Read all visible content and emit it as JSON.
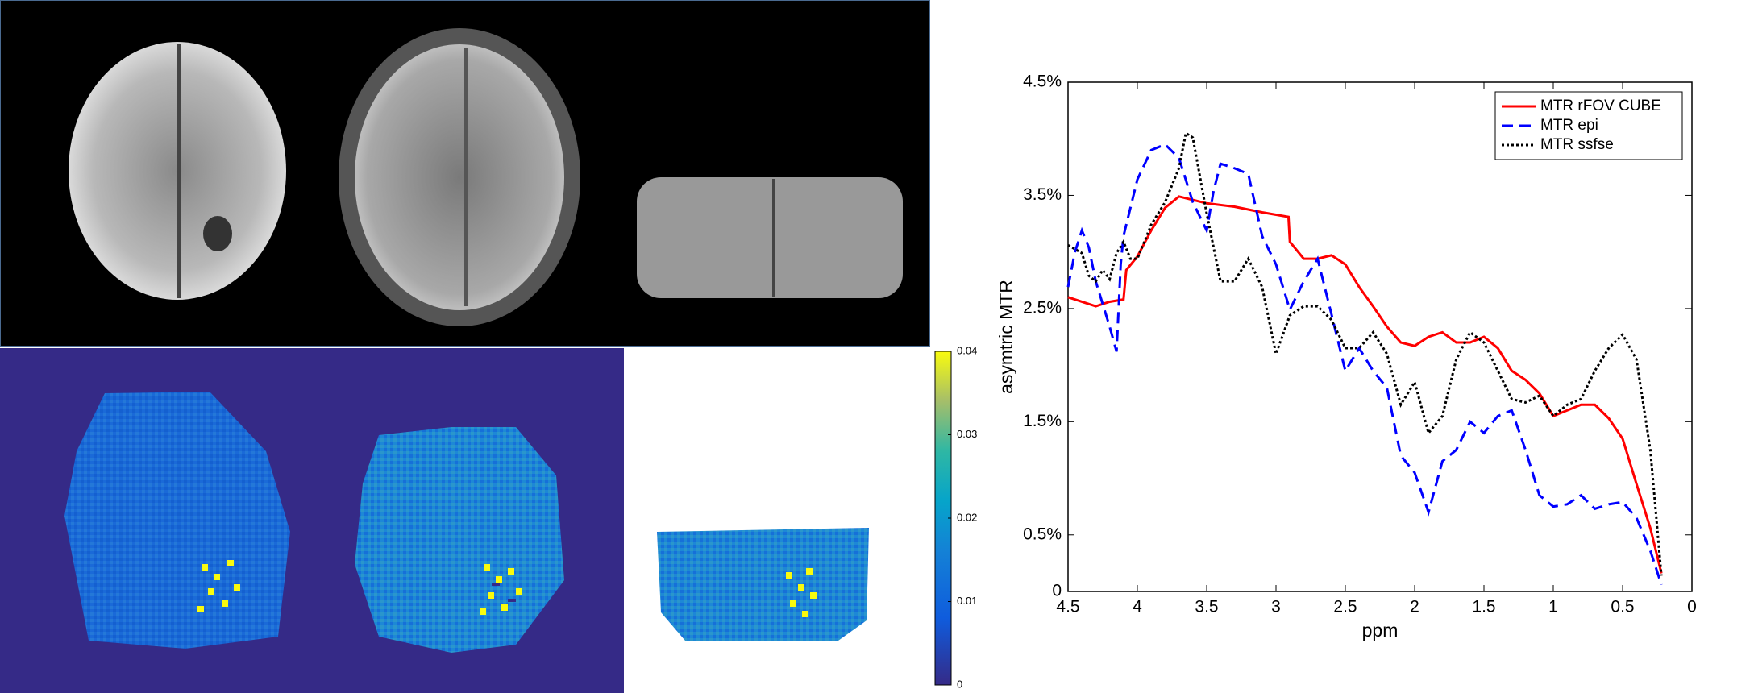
{
  "chart_data": [
    {
      "type": "line",
      "xlabel": "ppm",
      "ylabel": "asymtric MTR",
      "xlim": [
        4.5,
        0
      ],
      "xticks": [
        4.5,
        4,
        3.5,
        3,
        2.5,
        2,
        1.5,
        1,
        0.5,
        0
      ],
      "ylim": [
        0,
        4.5
      ],
      "yticks": [
        0,
        {
          "value": 0.5,
          "label": "0.5%"
        },
        {
          "value": 1.5,
          "label": "1.5%"
        },
        {
          "value": 2.5,
          "label": "2.5%"
        },
        {
          "value": 3.5,
          "label": "3.5%"
        },
        {
          "value": 4.5,
          "label": "4.5%"
        }
      ],
      "legend": "upper right",
      "series": [
        {
          "name": "MTR rFOV CUBE",
          "color": "#ff0000",
          "linestyle": "solid",
          "x": [
            4.5,
            4.4,
            4.3,
            4.2,
            4.1,
            4.08,
            4.0,
            3.9,
            3.8,
            3.7,
            3.6,
            3.5,
            3.3,
            3.1,
            2.91,
            2.9,
            2.8,
            2.7,
            2.6,
            2.5,
            2.4,
            2.3,
            2.2,
            2.1,
            2.0,
            1.9,
            1.8,
            1.7,
            1.6,
            1.5,
            1.4,
            1.3,
            1.2,
            1.1,
            1.0,
            0.9,
            0.8,
            0.7,
            0.6,
            0.5,
            0.4,
            0.3,
            0.22
          ],
          "values": [
            2.6,
            2.56,
            2.52,
            2.56,
            2.58,
            2.84,
            2.96,
            3.19,
            3.39,
            3.49,
            3.46,
            3.43,
            3.4,
            3.35,
            3.31,
            3.09,
            2.94,
            2.94,
            2.97,
            2.89,
            2.69,
            2.52,
            2.34,
            2.2,
            2.17,
            2.25,
            2.29,
            2.2,
            2.2,
            2.25,
            2.15,
            1.95,
            1.87,
            1.75,
            1.55,
            1.6,
            1.65,
            1.65,
            1.53,
            1.35,
            0.95,
            0.56,
            0.16
          ]
        },
        {
          "name": "MTR epi",
          "color": "#0000ff",
          "linestyle": "dashed",
          "x": [
            4.5,
            4.45,
            4.4,
            4.35,
            4.3,
            4.25,
            4.2,
            4.15,
            4.12,
            4.1,
            4.0,
            3.9,
            3.8,
            3.7,
            3.6,
            3.5,
            3.45,
            3.4,
            3.3,
            3.2,
            3.1,
            3.0,
            2.9,
            2.8,
            2.7,
            2.6,
            2.5,
            2.4,
            2.3,
            2.2,
            2.1,
            2.0,
            1.9,
            1.8,
            1.7,
            1.6,
            1.5,
            1.4,
            1.3,
            1.2,
            1.1,
            1.0,
            0.9,
            0.8,
            0.7,
            0.6,
            0.5,
            0.4,
            0.3,
            0.22
          ],
          "values": [
            2.69,
            3.0,
            3.19,
            3.04,
            2.74,
            2.54,
            2.34,
            2.12,
            2.89,
            3.14,
            3.64,
            3.9,
            3.95,
            3.83,
            3.44,
            3.19,
            3.54,
            3.78,
            3.74,
            3.69,
            3.14,
            2.89,
            2.49,
            2.74,
            2.94,
            2.45,
            1.95,
            2.15,
            1.95,
            1.8,
            1.2,
            1.05,
            0.7,
            1.15,
            1.25,
            1.5,
            1.4,
            1.55,
            1.6,
            1.25,
            0.85,
            0.75,
            0.77,
            0.85,
            0.73,
            0.77,
            0.79,
            0.65,
            0.36,
            0.06
          ]
        },
        {
          "name": "MTR ssfse",
          "color": "#000000",
          "linestyle": "dotted",
          "x": [
            4.5,
            4.4,
            4.35,
            4.3,
            4.25,
            4.2,
            4.15,
            4.1,
            4.05,
            4.0,
            3.9,
            3.8,
            3.7,
            3.65,
            3.6,
            3.5,
            3.4,
            3.3,
            3.2,
            3.1,
            3.0,
            2.9,
            2.8,
            2.7,
            2.6,
            2.5,
            2.4,
            2.3,
            2.2,
            2.1,
            2.0,
            1.9,
            1.8,
            1.7,
            1.6,
            1.5,
            1.4,
            1.3,
            1.2,
            1.1,
            1.0,
            0.9,
            0.8,
            0.7,
            0.6,
            0.5,
            0.4,
            0.3,
            0.22
          ],
          "values": [
            3.06,
            2.99,
            2.79,
            2.74,
            2.84,
            2.76,
            2.99,
            3.09,
            2.94,
            2.94,
            3.24,
            3.44,
            3.74,
            4.05,
            4.01,
            3.34,
            2.74,
            2.74,
            2.94,
            2.69,
            2.1,
            2.44,
            2.52,
            2.52,
            2.4,
            2.15,
            2.15,
            2.29,
            2.1,
            1.65,
            1.85,
            1.4,
            1.55,
            2.05,
            2.29,
            2.2,
            1.95,
            1.7,
            1.67,
            1.73,
            1.55,
            1.65,
            1.7,
            1.95,
            2.15,
            2.27,
            2.05,
            1.25,
            0.14
          ]
        }
      ]
    },
    {
      "type": "colorbar",
      "zlim": [
        0,
        0.04
      ],
      "zticks": [
        0,
        0.01,
        0.02,
        0.03,
        0.04
      ]
    }
  ]
}
